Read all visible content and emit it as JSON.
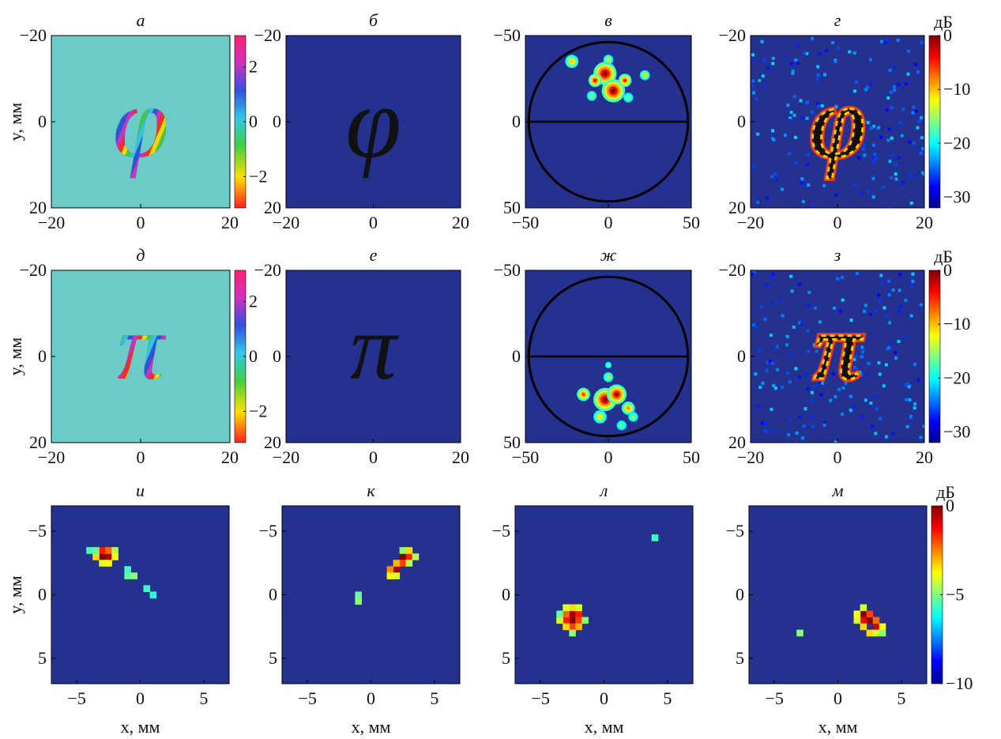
{
  "chart_data": [
    {
      "id": "a",
      "type": "heatmap",
      "title": "а",
      "ylabel": "y, мм",
      "xlim": [
        -20,
        20
      ],
      "ylim": [
        -20,
        20
      ],
      "xticks": [
        -20,
        0,
        20
      ],
      "yticks": [
        -20,
        0,
        20
      ],
      "glyph": "φ",
      "content": "phase",
      "colorbar": {
        "range": [
          -3.14,
          3.14
        ],
        "ticks": [
          2,
          0,
          -2
        ],
        "unit": ""
      }
    },
    {
      "id": "b",
      "type": "heatmap",
      "title": "б",
      "xlim": [
        -20,
        20
      ],
      "ylim": [
        -20,
        20
      ],
      "xticks": [
        -20,
        0,
        20
      ],
      "yticks": [
        -20,
        0,
        20
      ],
      "glyph": "φ",
      "content": "binary"
    },
    {
      "id": "c",
      "type": "heatmap",
      "title": "в",
      "xlim": [
        -50,
        50
      ],
      "ylim": [
        -50,
        50
      ],
      "xticks": [
        -50,
        0,
        50
      ],
      "yticks": [
        -50,
        0,
        50
      ],
      "content": "farfield",
      "circle_radius": 48,
      "spots": [
        [
          -2,
          -28,
          7,
          1.0
        ],
        [
          3,
          -18,
          7,
          1.0
        ],
        [
          -8,
          -24,
          4,
          0.85
        ],
        [
          10,
          -24,
          4,
          0.8
        ],
        [
          -22,
          -35,
          4,
          0.55
        ],
        [
          22,
          -27,
          3,
          0.5
        ],
        [
          0,
          -36,
          3,
          0.45
        ],
        [
          -10,
          -15,
          3,
          0.35
        ],
        [
          12,
          -14,
          3,
          0.3
        ]
      ]
    },
    {
      "id": "d",
      "type": "heatmap",
      "title": "г",
      "xlim": [
        -20,
        20
      ],
      "ylim": [
        -20,
        20
      ],
      "xticks": [
        -20,
        0,
        20
      ],
      "yticks": [
        -20,
        0,
        20
      ],
      "glyph": "φ",
      "content": "recon",
      "colorbar": {
        "range": [
          -32,
          0
        ],
        "ticks": [
          0,
          -10,
          -20,
          -30
        ],
        "unit": "дБ"
      }
    },
    {
      "id": "e",
      "type": "heatmap",
      "title": "д",
      "ylabel": "y, мм",
      "xlim": [
        -20,
        20
      ],
      "ylim": [
        -20,
        20
      ],
      "xticks": [
        -20,
        0,
        20
      ],
      "yticks": [
        -20,
        0,
        20
      ],
      "glyph": "π",
      "content": "phase",
      "colorbar": {
        "range": [
          -3.14,
          3.14
        ],
        "ticks": [
          2,
          0,
          -2
        ],
        "unit": ""
      }
    },
    {
      "id": "f",
      "type": "heatmap",
      "title": "е",
      "xlim": [
        -20,
        20
      ],
      "ylim": [
        -20,
        20
      ],
      "xticks": [
        -20,
        0,
        20
      ],
      "yticks": [
        -20,
        0,
        20
      ],
      "glyph": "π",
      "content": "binary"
    },
    {
      "id": "g",
      "type": "heatmap",
      "title": "ж",
      "xlim": [
        -50,
        50
      ],
      "ylim": [
        -50,
        50
      ],
      "xticks": [
        -50,
        0,
        50
      ],
      "yticks": [
        -50,
        0,
        50
      ],
      "content": "farfield",
      "circle_radius": 48,
      "spots": [
        [
          -2,
          25,
          7,
          1.0
        ],
        [
          5,
          22,
          6,
          0.95
        ],
        [
          -15,
          22,
          4,
          0.75
        ],
        [
          12,
          30,
          4,
          0.65
        ],
        [
          -5,
          35,
          4,
          0.5
        ],
        [
          0,
          12,
          3,
          0.4
        ],
        [
          0,
          5,
          2,
          0.3
        ],
        [
          15,
          35,
          3,
          0.35
        ],
        [
          8,
          40,
          3,
          0.3
        ]
      ]
    },
    {
      "id": "h",
      "type": "heatmap",
      "title": "з",
      "xlim": [
        -20,
        20
      ],
      "ylim": [
        -20,
        20
      ],
      "xticks": [
        -20,
        0,
        20
      ],
      "yticks": [
        -20,
        0,
        20
      ],
      "glyph": "π",
      "content": "recon",
      "colorbar": {
        "range": [
          -32,
          0
        ],
        "ticks": [
          0,
          -10,
          -20,
          -30
        ],
        "unit": "дБ"
      }
    },
    {
      "id": "i",
      "type": "heatmap",
      "title": "и",
      "xlabel": "x, мм",
      "ylabel": "y, мм",
      "xlim": [
        -7,
        7
      ],
      "ylim": [
        -7,
        7
      ],
      "xticks": [
        -5,
        0,
        5
      ],
      "yticks": [
        -5,
        0,
        5
      ],
      "content": "spot",
      "cells": [
        [
          -3,
          -3,
          1.0
        ],
        [
          -2.5,
          -3,
          0.95
        ],
        [
          -3,
          -3.5,
          0.8
        ],
        [
          -2.5,
          -3.5,
          0.7
        ],
        [
          -3.5,
          -3,
          0.55
        ],
        [
          -2,
          -3,
          0.5
        ],
        [
          -3,
          -2.5,
          0.45
        ],
        [
          -2.5,
          -2.5,
          0.5
        ],
        [
          -2,
          -3.5,
          0.4
        ],
        [
          -3.5,
          -3.5,
          0.3
        ],
        [
          -4,
          -3.5,
          0.25
        ],
        [
          -1,
          -1.5,
          0.3
        ],
        [
          -0.5,
          -1.5,
          0.35
        ],
        [
          -1,
          -2,
          0.25
        ],
        [
          0.5,
          -0.5,
          0.25
        ],
        [
          1,
          0,
          0.22
        ]
      ]
    },
    {
      "id": "j",
      "type": "heatmap",
      "title": "к",
      "xlabel": "x, мм",
      "xlim": [
        -7,
        7
      ],
      "ylim": [
        -7,
        7
      ],
      "xticks": [
        -5,
        0,
        5
      ],
      "yticks": [
        -5,
        0,
        5
      ],
      "content": "spot",
      "cells": [
        [
          2.5,
          -3,
          1.0
        ],
        [
          2,
          -2,
          0.95
        ],
        [
          3,
          -3,
          0.8
        ],
        [
          2.5,
          -2.5,
          0.75
        ],
        [
          1.5,
          -2,
          0.65
        ],
        [
          2,
          -2.5,
          0.6
        ],
        [
          3,
          -3.5,
          0.55
        ],
        [
          1.5,
          -1.5,
          0.5
        ],
        [
          3.5,
          -3,
          0.4
        ],
        [
          2,
          -1.5,
          0.45
        ],
        [
          3,
          -2.5,
          0.4
        ],
        [
          2.5,
          -3.5,
          0.35
        ],
        [
          -1,
          0,
          0.3
        ],
        [
          -1,
          0.5,
          0.35
        ]
      ]
    },
    {
      "id": "k",
      "type": "heatmap",
      "title": "л",
      "xlabel": "x, мм",
      "xlim": [
        -7,
        7
      ],
      "ylim": [
        -7,
        7
      ],
      "xticks": [
        -5,
        0,
        5
      ],
      "yticks": [
        -5,
        0,
        5
      ],
      "content": "spot",
      "cells": [
        [
          -2.5,
          2,
          1.0
        ],
        [
          -2.5,
          1.5,
          0.95
        ],
        [
          -2,
          1.5,
          0.8
        ],
        [
          -3,
          2,
          0.8
        ],
        [
          -2,
          2,
          0.75
        ],
        [
          -3,
          1.5,
          0.7
        ],
        [
          -2.5,
          2.5,
          0.75
        ],
        [
          -2,
          2.5,
          0.6
        ],
        [
          -3,
          2.5,
          0.55
        ],
        [
          -2.5,
          1,
          0.55
        ],
        [
          -2,
          1,
          0.45
        ],
        [
          -3,
          1,
          0.45
        ],
        [
          -3.5,
          2,
          0.45
        ],
        [
          -1.5,
          2,
          0.35
        ],
        [
          -2.5,
          3,
          0.35
        ],
        [
          -3.5,
          1.5,
          0.3
        ],
        [
          4,
          -4.5,
          0.25
        ]
      ]
    },
    {
      "id": "l",
      "type": "heatmap",
      "title": "м",
      "xlabel": "x, мм",
      "xlim": [
        -7,
        7
      ],
      "ylim": [
        -7,
        7
      ],
      "xticks": [
        -5,
        0,
        5
      ],
      "yticks": [
        -5,
        0,
        5
      ],
      "content": "spot",
      "cells": [
        [
          2,
          1.5,
          1.0
        ],
        [
          2.5,
          2,
          1.0
        ],
        [
          3,
          2.5,
          0.9
        ],
        [
          2,
          2,
          0.85
        ],
        [
          2.5,
          1.5,
          0.75
        ],
        [
          3,
          2,
          0.7
        ],
        [
          3.5,
          2.5,
          0.5
        ],
        [
          1.5,
          1.5,
          0.5
        ],
        [
          1.5,
          2,
          0.45
        ],
        [
          2,
          1,
          0.45
        ],
        [
          2.5,
          3,
          0.55
        ],
        [
          3,
          3,
          0.45
        ],
        [
          3.5,
          3,
          0.35
        ],
        [
          2,
          2.5,
          0.55
        ],
        [
          -3,
          3,
          0.35
        ]
      ],
      "colorbar": {
        "range": [
          -10,
          0
        ],
        "ticks": [
          0,
          -5,
          -10
        ],
        "unit": "дБ"
      }
    }
  ]
}
